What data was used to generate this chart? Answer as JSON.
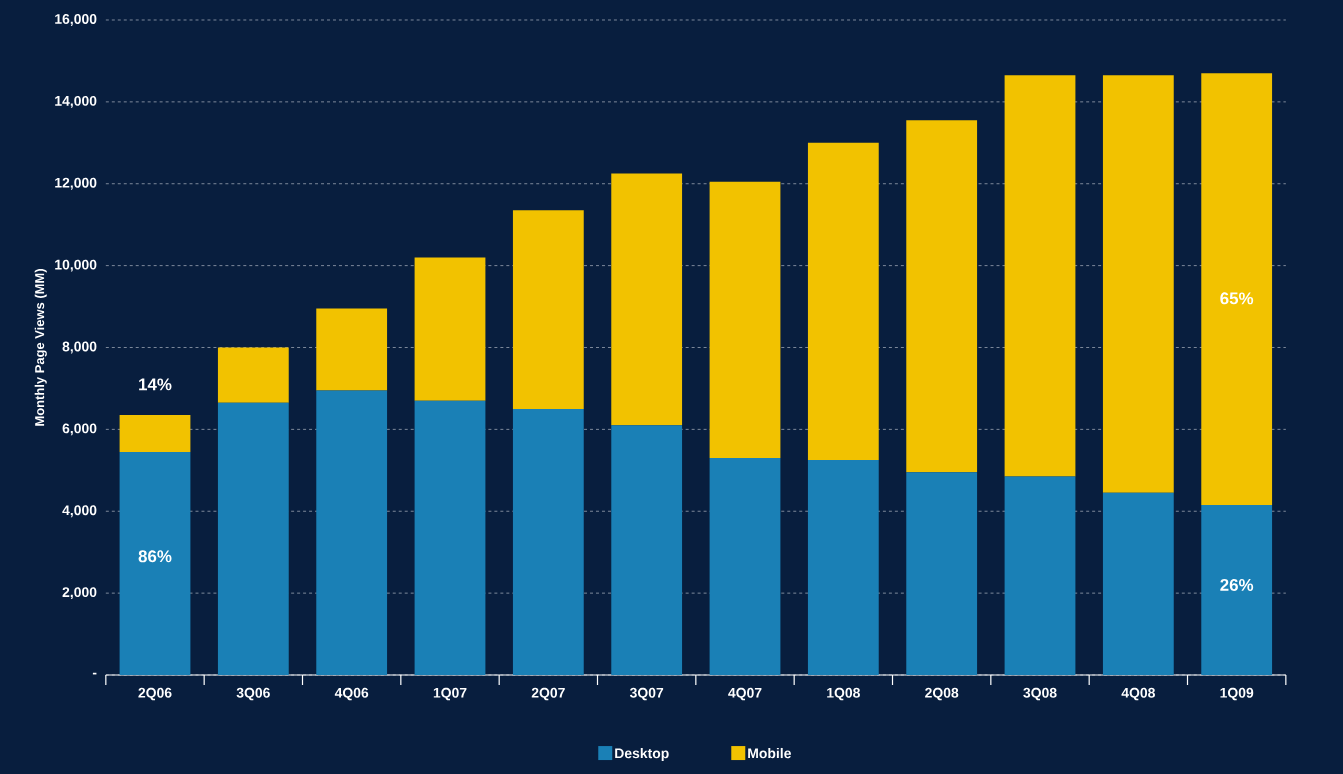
{
  "chart_data": {
    "type": "bar",
    "stacked": true,
    "ylabel": "Monthly Page Views (MM)",
    "categories": [
      "2Q06",
      "3Q06",
      "4Q06",
      "1Q07",
      "2Q07",
      "3Q07",
      "4Q07",
      "1Q08",
      "2Q08",
      "3Q08",
      "4Q08",
      "1Q09"
    ],
    "series": [
      {
        "name": "Desktop",
        "color": "#1a80b6",
        "values": [
          5450,
          6650,
          6950,
          6700,
          6500,
          6100,
          5300,
          5250,
          4950,
          4850,
          4450,
          4150
        ]
      },
      {
        "name": "Mobile",
        "color": "#f2c200",
        "values": [
          900,
          1350,
          2000,
          3500,
          4850,
          6150,
          6750,
          7750,
          8600,
          9800,
          10200,
          10550
        ]
      }
    ],
    "ylim": [
      0,
      16000
    ],
    "yticks": [
      {
        "value": 0,
        "label": "-"
      },
      {
        "value": 2000,
        "label": "2,000"
      },
      {
        "value": 4000,
        "label": "4,000"
      },
      {
        "value": 6000,
        "label": "6,000"
      },
      {
        "value": 8000,
        "label": "8,000"
      },
      {
        "value": 10000,
        "label": "10,000"
      },
      {
        "value": 12000,
        "label": "12,000"
      },
      {
        "value": 14000,
        "label": "14,000"
      },
      {
        "value": 16000,
        "label": "16,000"
      }
    ],
    "grid": "y",
    "legend": "bottom",
    "annotations": [
      "86%",
      "14%",
      "65%",
      "26%"
    ]
  }
}
